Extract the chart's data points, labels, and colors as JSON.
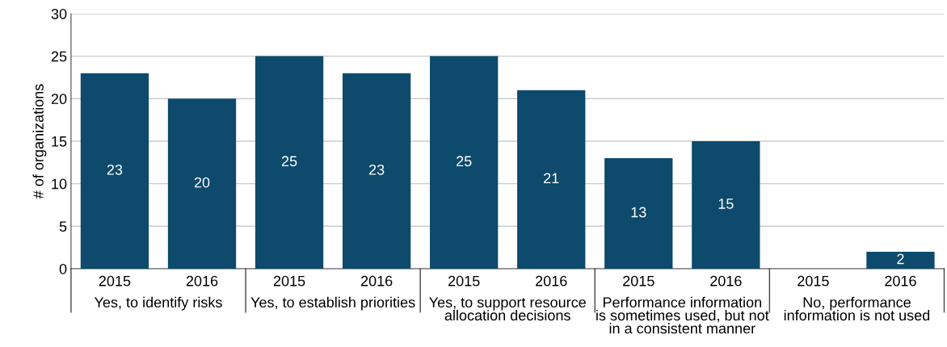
{
  "chart_data": {
    "type": "bar",
    "ylabel": "# of organizations",
    "categories": [
      "2015",
      "2016",
      "2015",
      "2016",
      "2015",
      "2016",
      "2015",
      "2016",
      "2015",
      "2016"
    ],
    "values": [
      23,
      20,
      25,
      23,
      25,
      21,
      13,
      15,
      0,
      2
    ],
    "value_labels": [
      "23",
      "20",
      "25",
      "23",
      "25",
      "21",
      "13",
      "15",
      null,
      "2"
    ],
    "color": "#0d4a6b",
    "annotations": [
      "Yes, to identify risks",
      "Yes, to establish priorities",
      "Yes, to support resource\nallocation decisions",
      "Performance information\nis sometimes used, but not\nin a consistent manner",
      "No, performance\ninformation is not used"
    ],
    "ylim": [
      0,
      30
    ],
    "yticks": [
      0,
      5,
      10,
      15,
      20,
      25,
      30
    ],
    "grid": "y"
  }
}
